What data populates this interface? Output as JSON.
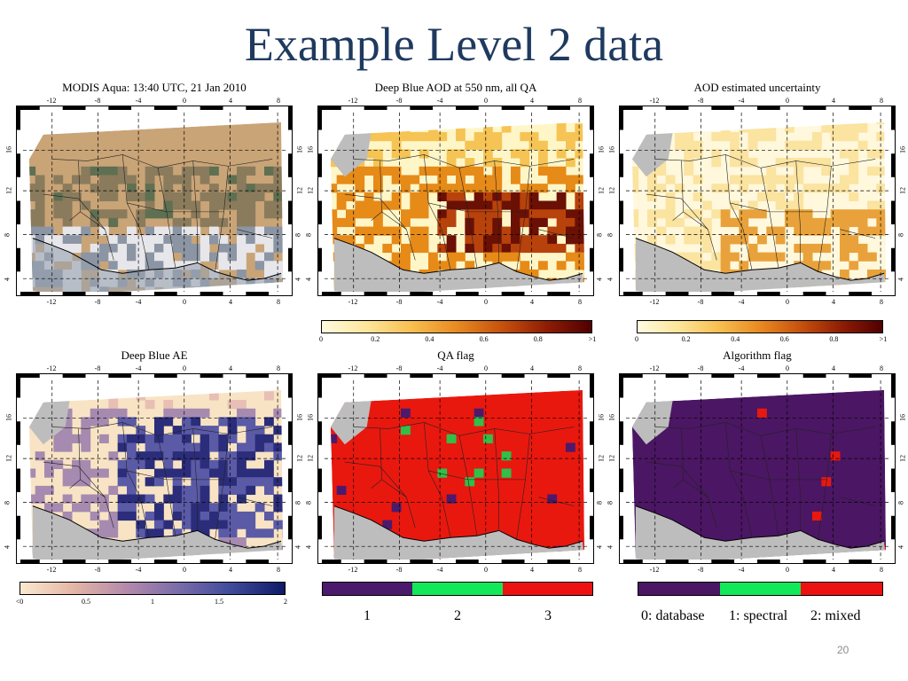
{
  "slide": {
    "title": "Example Level 2 data",
    "page_number": "20"
  },
  "axes": {
    "lon_ticks": [
      "-12",
      "-8",
      "-4",
      "0",
      "4",
      "8"
    ],
    "lat_ticks": [
      "16",
      "12",
      "8",
      "4"
    ]
  },
  "panels": [
    {
      "title": "MODIS Aqua: 13:40 UTC, 21 Jan 2010",
      "style": "truecolor",
      "colors": [
        "#c9a477",
        "#8a7b5c",
        "#5f6f52",
        "#8c95a3",
        "#e7e6ea"
      ]
    },
    {
      "title": "Deep Blue AOD at 550 nm, all QA",
      "style": "aod",
      "colors": [
        "#fff6c8",
        "#f6c454",
        "#e68a18",
        "#b8420c",
        "#6b1004",
        "#bdbdbd"
      ],
      "colorbar": {
        "gradient": [
          "#fffbe0",
          "#fde59a",
          "#f7bf4f",
          "#e88a22",
          "#c7510d",
          "#8f1d05",
          "#500000"
        ],
        "ticks": [
          "0",
          "0.2",
          "0.4",
          "0.6",
          "0.8",
          ">1"
        ]
      }
    },
    {
      "title": "AOD estimated uncertainty",
      "style": "uncertainty",
      "colors": [
        "#fff8dc",
        "#fbe3a0",
        "#f6cc6a",
        "#e9a23b",
        "#bdbdbd"
      ],
      "colorbar": {
        "gradient": [
          "#fffbe0",
          "#fde59a",
          "#f7bf4f",
          "#e88a22",
          "#c7510d",
          "#8f1d05",
          "#500000"
        ],
        "ticks": [
          "0",
          "0.2",
          "0.4",
          "0.6",
          "0.8",
          ">1"
        ]
      }
    },
    {
      "title": "Deep Blue AE",
      "style": "ae",
      "colors": [
        "#f8e4c4",
        "#e8bfb4",
        "#a68ab0",
        "#5a5aa6",
        "#2b2d7a",
        "#bdbdbd"
      ],
      "colorbar": {
        "gradient": [
          "#fbe9cf",
          "#e4b6a6",
          "#b48aab",
          "#7a6caa",
          "#3e4a9a",
          "#0e1a66"
        ],
        "ticks": [
          "<0",
          "0.5",
          "1",
          "1.5",
          "2"
        ]
      }
    },
    {
      "title": "QA flag",
      "style": "qa",
      "colors": [
        "#e8180f",
        "#30c04a",
        "#4b1a6c",
        "#bdbdbd"
      ],
      "categories": {
        "colors": [
          "#4b1a6c",
          "#12e85a",
          "#ee1111"
        ],
        "labels": [
          "1",
          "2",
          "3"
        ]
      }
    },
    {
      "title": "Algorithm flag",
      "style": "algo",
      "colors": [
        "#4b1663",
        "#e8180f",
        "#30c04a",
        "#bdbdbd"
      ],
      "categories": {
        "colors": [
          "#4b1663",
          "#12e85a",
          "#ee1111"
        ],
        "labels": [
          "0: database",
          "1: spectral",
          "2: mixed"
        ]
      }
    }
  ]
}
